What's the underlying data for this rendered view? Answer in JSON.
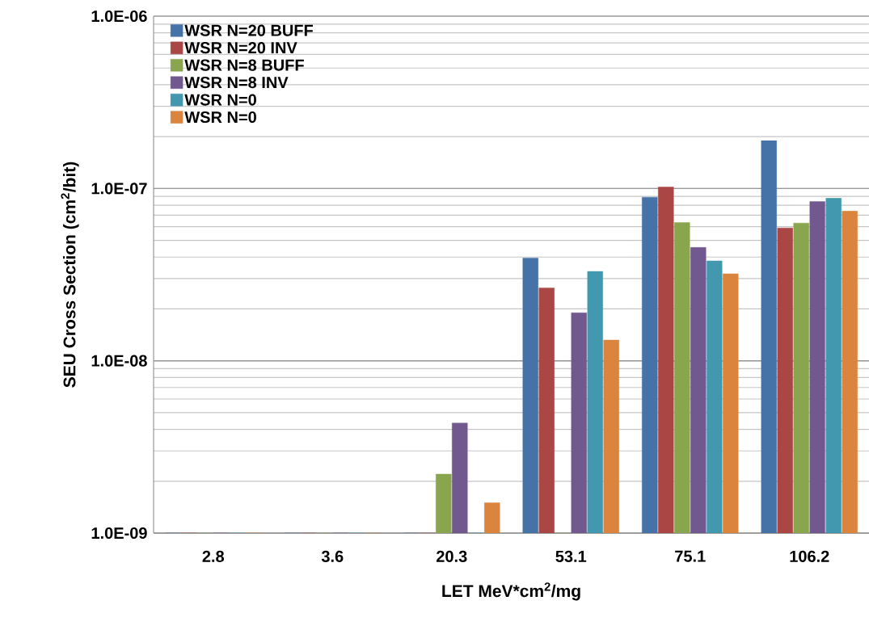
{
  "chart_data": {
    "type": "bar",
    "xlabel": "LET MeV*cm$^{2}$/mg",
    "ylabel": "SEU Cross Section (cm$^{2}$/bit)",
    "categories": [
      "2.8",
      "3.6",
      "20.3",
      "53.1",
      "75.1",
      "106.2"
    ],
    "series": [
      {
        "name": "WSR N=20 BUFF",
        "color": "#4572a7",
        "values": [
          1e-09,
          1e-09,
          1e-09,
          3.95e-08,
          8.9e-08,
          1.9e-07
        ]
      },
      {
        "name": "WSR N=20 INV",
        "color": "#aa4643",
        "values": [
          1e-09,
          1e-09,
          1e-09,
          2.65e-08,
          1.02e-07,
          5.9e-08
        ]
      },
      {
        "name": "WSR N=8 BUFF",
        "color": "#89a54e",
        "values": [
          1e-09,
          1e-09,
          2.2e-09,
          1e-09,
          6.35e-08,
          6.3e-08
        ]
      },
      {
        "name": "WSR N=8 INV",
        "color": "#71588f",
        "values": [
          1e-09,
          1e-09,
          4.35e-09,
          1.9e-08,
          4.55e-08,
          8.4e-08
        ]
      },
      {
        "name": "WSR N=0",
        "color": "#4198af",
        "values": [
          1e-09,
          1e-09,
          1e-09,
          3.3e-08,
          3.8e-08,
          8.8e-08
        ]
      },
      {
        "name": "WSR N=0",
        "color": "#db843d",
        "values": [
          1e-09,
          1e-09,
          1.5e-09,
          1.32e-08,
          3.2e-08,
          7.4e-08
        ]
      }
    ],
    "log": "y",
    "ylim": [
      1e-09,
      1e-06
    ],
    "yticks": [
      {
        "value": 1e-09,
        "label": "1.0E-09"
      },
      {
        "value": 1e-08,
        "label": "1.0E-08"
      },
      {
        "value": 1e-07,
        "label": "1.0E-07"
      },
      {
        "value": 1e-06,
        "label": "1.0E-06"
      }
    ],
    "grid": "y",
    "legend": "top left"
  }
}
